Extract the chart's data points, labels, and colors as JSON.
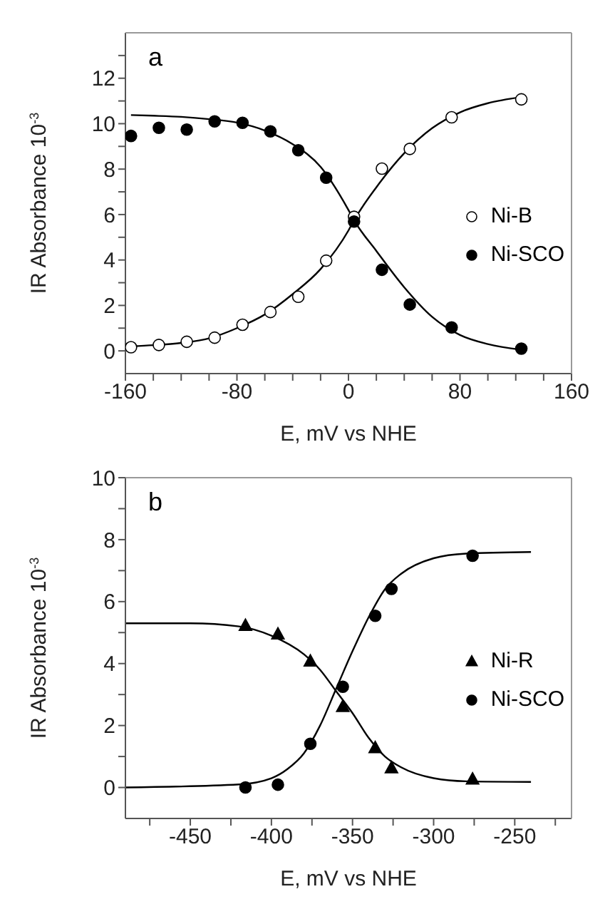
{
  "chart_data": [
    {
      "type": "scatter",
      "annotations": [
        "a"
      ],
      "xlabel": "E, mV vs NHE",
      "ylabel": "IR Absorbance 10$^{-3}$",
      "xlim": [
        -160,
        160
      ],
      "ylim": [
        -1,
        14
      ],
      "xticks": [
        -160,
        {
          "value": -140,
          "label": null
        },
        {
          "value": -120,
          "label": null
        },
        {
          "value": -100,
          "label": null
        },
        -80,
        {
          "value": -60,
          "label": null
        },
        {
          "value": -40,
          "label": null
        },
        {
          "value": -20,
          "label": null
        },
        0,
        {
          "value": 20,
          "label": null
        },
        {
          "value": 40,
          "label": null
        },
        {
          "value": 60,
          "label": null
        },
        80,
        {
          "value": 100,
          "label": null
        },
        {
          "value": 120,
          "label": null
        },
        {
          "value": 140,
          "label": null
        },
        160
      ],
      "yticks": [
        0,
        {
          "value": 1,
          "label": null
        },
        2,
        {
          "value": 3,
          "label": null
        },
        4,
        {
          "value": 5,
          "label": null
        },
        6,
        {
          "value": 7,
          "label": null
        },
        8,
        {
          "value": 9,
          "label": null
        },
        10,
        {
          "value": 11,
          "label": null
        },
        12,
        {
          "value": 13,
          "label": null
        }
      ],
      "legend": "right",
      "grid": false,
      "series": [
        {
          "name": "Ni-B",
          "type": "scatter",
          "marker": "circle",
          "color": "#ffffff",
          "x": [
            -156,
            -136,
            -116,
            -96,
            -76,
            -56,
            -36,
            -16,
            4,
            24,
            44,
            74,
            124
          ],
          "values": [
            0.16,
            0.26,
            0.4,
            0.58,
            1.15,
            1.71,
            2.38,
            3.97,
            5.9,
            8.02,
            8.89,
            10.28,
            11.07
          ]
        },
        {
          "name": "Ni-SCO",
          "type": "scatter",
          "marker": "circle",
          "color": "#000000",
          "x": [
            -156,
            -136,
            -116,
            -96,
            -76,
            -56,
            -36,
            -16,
            4,
            24,
            44,
            74,
            124
          ],
          "values": [
            9.46,
            9.82,
            9.74,
            10.1,
            10.04,
            9.66,
            8.83,
            7.62,
            5.69,
            3.57,
            2.04,
            1.03,
            0.1
          ]
        },
        {
          "type": "line",
          "marker": "none",
          "line_style": "solid",
          "color": "#000000",
          "x": [
            -156,
            -140,
            -120,
            -100,
            -80,
            -60,
            -40,
            -20,
            0,
            4,
            20,
            40,
            60,
            80,
            100,
            124
          ],
          "values": [
            0.2,
            0.25,
            0.35,
            0.55,
            1.0,
            1.6,
            2.5,
            3.6,
            5.3,
            5.75,
            7.2,
            8.7,
            9.8,
            10.5,
            10.9,
            11.17
          ]
        },
        {
          "type": "line",
          "marker": "none",
          "line_style": "solid",
          "color": "#000000",
          "x": [
            -156,
            -140,
            -120,
            -100,
            -80,
            -60,
            -40,
            -20,
            0,
            4,
            20,
            40,
            60,
            80,
            100,
            124
          ],
          "values": [
            10.38,
            10.35,
            10.3,
            10.2,
            10.05,
            9.7,
            9.1,
            8.1,
            6.2,
            5.75,
            4.4,
            2.8,
            1.5,
            0.7,
            0.3,
            0.05
          ]
        }
      ]
    },
    {
      "type": "scatter",
      "annotations": [
        "b"
      ],
      "xlabel": "E, mV vs NHE",
      "ylabel": "IR Absorbance 10$^{-3}$",
      "xlim": [
        -490,
        -215
      ],
      "ylim": [
        -1,
        10
      ],
      "xticks": [
        {
          "value": -475,
          "label": null
        },
        -450,
        {
          "value": -425,
          "label": null
        },
        -400,
        {
          "value": -375,
          "label": null
        },
        -350,
        {
          "value": -325,
          "label": null
        },
        -300,
        {
          "value": -275,
          "label": null
        },
        -250,
        {
          "value": -225,
          "label": null
        }
      ],
      "yticks": [
        0,
        {
          "value": 1,
          "label": null
        },
        2,
        {
          "value": 3,
          "label": null
        },
        4,
        {
          "value": 5,
          "label": null
        },
        6,
        {
          "value": 7,
          "label": null
        },
        8,
        {
          "value": 9,
          "label": null
        },
        10
      ],
      "legend": "right",
      "grid": false,
      "series": [
        {
          "name": "Ni-R",
          "type": "scatter",
          "marker": "triangle",
          "color": "#000000",
          "x": [
            -416,
            -396,
            -376,
            -356,
            -336,
            -326,
            -276
          ],
          "values": [
            5.22,
            4.94,
            4.07,
            2.6,
            1.27,
            0.62,
            0.26
          ]
        },
        {
          "name": "Ni-SCO",
          "type": "scatter",
          "marker": "circle",
          "color": "#000000",
          "x": [
            -416,
            -396,
            -376,
            -356,
            -336,
            -326,
            -276
          ],
          "values": [
            0,
            0.09,
            1.41,
            3.25,
            5.54,
            6.41,
            7.48
          ]
        },
        {
          "type": "line",
          "marker": "none",
          "line_style": "solid",
          "color": "#000000",
          "x": [
            -490,
            -450,
            -420,
            -400,
            -380,
            -370,
            -360,
            -350,
            -340,
            -330,
            -320,
            -300,
            -280,
            -240
          ],
          "values": [
            5.3,
            5.3,
            5.2,
            4.9,
            4.3,
            3.8,
            3.1,
            2.4,
            1.6,
            1.0,
            0.65,
            0.3,
            0.2,
            0.18
          ]
        },
        {
          "type": "line",
          "marker": "none",
          "line_style": "solid",
          "color": "#000000",
          "x": [
            -490,
            -420,
            -400,
            -390,
            -380,
            -370,
            -360,
            -350,
            -340,
            -330,
            -320,
            -300,
            -280,
            -240
          ],
          "values": [
            0,
            0.1,
            0.3,
            0.6,
            1.1,
            2.0,
            3.2,
            4.4,
            5.5,
            6.4,
            6.9,
            7.4,
            7.55,
            7.6
          ]
        }
      ]
    }
  ]
}
